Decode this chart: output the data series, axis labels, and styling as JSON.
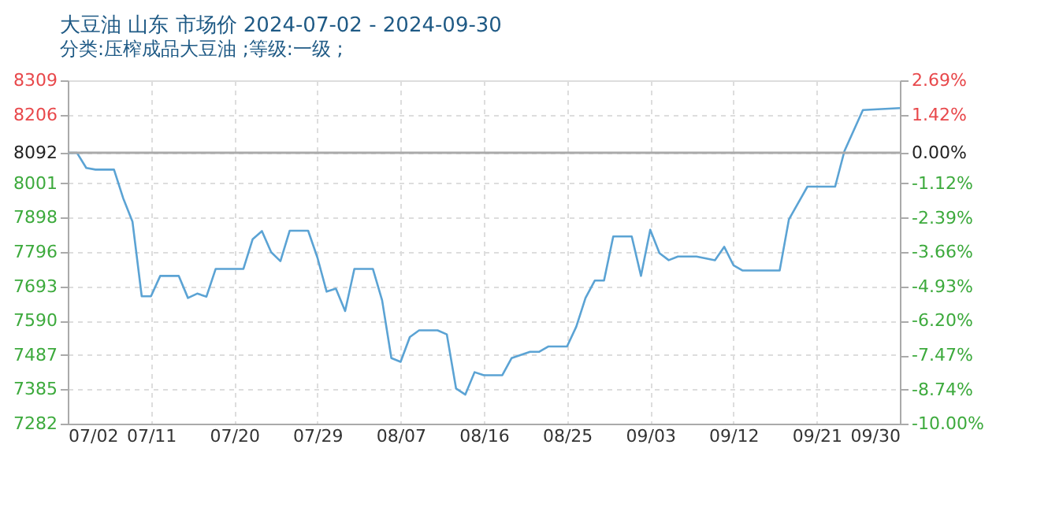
{
  "chart_data": {
    "type": "line",
    "title": "大豆油 山东 市场价 2024-07-02 - 2024-09-30",
    "subtitle": "分类:压榨成品大豆油 ;等级:一级 ;",
    "x": [
      "2024-07-02",
      "2024-07-03",
      "2024-07-04",
      "2024-07-05",
      "2024-07-07",
      "2024-07-08",
      "2024-07-09",
      "2024-07-10",
      "2024-07-11",
      "2024-07-12",
      "2024-07-14",
      "2024-07-15",
      "2024-07-16",
      "2024-07-17",
      "2024-07-18",
      "2024-07-21",
      "2024-07-22",
      "2024-07-23",
      "2024-07-24",
      "2024-07-25",
      "2024-07-26",
      "2024-07-28",
      "2024-07-29",
      "2024-07-30",
      "2024-07-31",
      "2024-08-01",
      "2024-08-02",
      "2024-08-04",
      "2024-08-05",
      "2024-08-06",
      "2024-08-07",
      "2024-08-08",
      "2024-08-09",
      "2024-08-11",
      "2024-08-12",
      "2024-08-13",
      "2024-08-14",
      "2024-08-15",
      "2024-08-16",
      "2024-08-18",
      "2024-08-19",
      "2024-08-21",
      "2024-08-22",
      "2024-08-23",
      "2024-08-25",
      "2024-08-26",
      "2024-08-27",
      "2024-08-28",
      "2024-08-29",
      "2024-08-30",
      "2024-09-01",
      "2024-09-02",
      "2024-09-03",
      "2024-09-04",
      "2024-09-05",
      "2024-09-06",
      "2024-09-08",
      "2024-09-10",
      "2024-09-11",
      "2024-09-12",
      "2024-09-13",
      "2024-09-17",
      "2024-09-18",
      "2024-09-20",
      "2024-09-23",
      "2024-09-24",
      "2024-09-26",
      "2024-09-30"
    ],
    "series": [
      {
        "color": "#5ba3d4",
        "values": [
          8092,
          8092,
          8047,
          8042,
          8042,
          7956,
          7886,
          7663,
          7663,
          7724,
          7724,
          7658,
          7671,
          7662,
          7745,
          7745,
          7834,
          7858,
          7795,
          7768,
          7859,
          7859,
          7779,
          7677,
          7686,
          7619,
          7745,
          7745,
          7651,
          7478,
          7467,
          7541,
          7561,
          7561,
          7549,
          7387,
          7369,
          7436,
          7427,
          7427,
          7478,
          7497,
          7497,
          7513,
          7513,
          7572,
          7658,
          7710,
          7710,
          7842,
          7842,
          7724,
          7862,
          7792,
          7771,
          7782,
          7782,
          7771,
          7811,
          7756,
          7740,
          7740,
          7893,
          7991,
          7991,
          8097,
          8220,
          8226
        ]
      }
    ],
    "xlim": [
      "2024-07-02",
      "2024-09-30"
    ],
    "xticks": [
      {
        "value": "2024-07-02",
        "label": "07/02"
      },
      {
        "value": "2024-07-11",
        "label": "07/11"
      },
      {
        "value": "2024-07-20",
        "label": "07/20"
      },
      {
        "value": "2024-07-29",
        "label": "07/29"
      },
      {
        "value": "2024-08-07",
        "label": "08/07"
      },
      {
        "value": "2024-08-16",
        "label": "08/16"
      },
      {
        "value": "2024-08-25",
        "label": "08/25"
      },
      {
        "value": "2024-09-03",
        "label": "09/03"
      },
      {
        "value": "2024-09-12",
        "label": "09/12"
      },
      {
        "value": "2024-09-21",
        "label": "09/21"
      },
      {
        "value": "2024-09-30",
        "label": "09/30"
      }
    ],
    "ylim": [
      7282,
      8309
    ],
    "yticks": [
      7282,
      7385,
      7487,
      7590,
      7693,
      7796,
      7898,
      8001,
      8092,
      8206,
      8309
    ],
    "y2lim": [
      -10,
      2.69
    ],
    "y2ticks": [
      {
        "value": -10,
        "label": "-10.00%"
      },
      {
        "value": -8.74,
        "label": "-8.74%"
      },
      {
        "value": -7.47,
        "label": "-7.47%"
      },
      {
        "value": -6.2,
        "label": "-6.20%"
      },
      {
        "value": -4.93,
        "label": "-4.93%"
      },
      {
        "value": -3.66,
        "label": "-3.66%"
      },
      {
        "value": -2.39,
        "label": "-2.39%"
      },
      {
        "value": -1.12,
        "label": "-1.12%"
      },
      {
        "value": 0,
        "label": "0.00%"
      },
      {
        "value": 1.42,
        "label": "1.42%"
      },
      {
        "value": 2.69,
        "label": "2.69%"
      }
    ],
    "ref_lines": [
      {
        "axis": "y",
        "value": 8092,
        "color": "#aaaaaa"
      }
    ],
    "grid": true,
    "marker": "none",
    "line_style": "solid"
  }
}
